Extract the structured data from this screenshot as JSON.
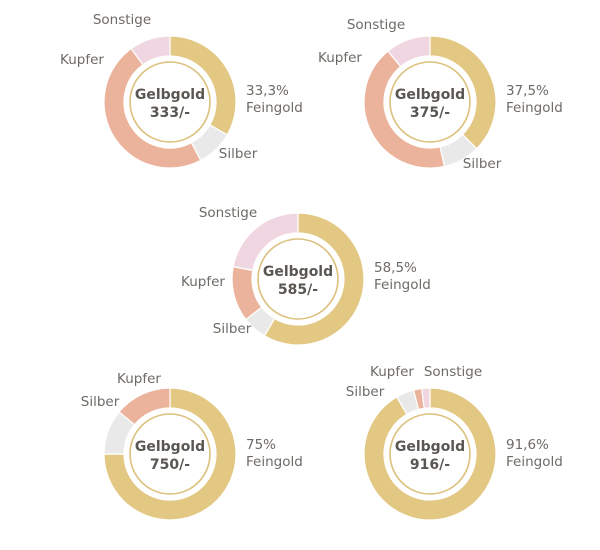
{
  "colors": {
    "gold": "#e3c884",
    "copper": "#ebb39c",
    "silver": "#e9e9e9",
    "other": "#f0d6e0",
    "inner_ring": "#dcc07c",
    "text": "#6e6a66",
    "center_text": "#5a5652"
  },
  "chart_data": [
    {
      "type": "pie",
      "title": "Gelbgold",
      "value_label": "333/-",
      "gold_label": [
        "33,3%",
        "Feingold"
      ],
      "slices": [
        {
          "name": "Feingold",
          "value": 33.3,
          "color_key": "gold"
        },
        {
          "name": "Silber",
          "value": 9,
          "color_key": "silver"
        },
        {
          "name": "Kupfer",
          "value": 47.7,
          "color_key": "copper"
        },
        {
          "name": "Sonstige",
          "value": 10,
          "color_key": "other"
        }
      ],
      "labels": {
        "silber": "Silber",
        "kupfer": "Kupfer",
        "sonstige": "Sonstige"
      }
    },
    {
      "type": "pie",
      "title": "Gelbgold",
      "value_label": "375/-",
      "gold_label": [
        "37,5%",
        "Feingold"
      ],
      "slices": [
        {
          "name": "Feingold",
          "value": 37.5,
          "color_key": "gold"
        },
        {
          "name": "Silber",
          "value": 9,
          "color_key": "silver"
        },
        {
          "name": "Kupfer",
          "value": 42.5,
          "color_key": "copper"
        },
        {
          "name": "Sonstige",
          "value": 11,
          "color_key": "other"
        }
      ],
      "labels": {
        "silber": "Silber",
        "kupfer": "Kupfer",
        "sonstige": "Sonstige"
      }
    },
    {
      "type": "pie",
      "title": "Gelbgold",
      "value_label": "585/-",
      "gold_label": [
        "58,5%",
        "Feingold"
      ],
      "slices": [
        {
          "name": "Feingold",
          "value": 58.5,
          "color_key": "gold"
        },
        {
          "name": "Silber",
          "value": 6,
          "color_key": "silver"
        },
        {
          "name": "Kupfer",
          "value": 13.5,
          "color_key": "copper"
        },
        {
          "name": "Sonstige",
          "value": 22,
          "color_key": "other"
        }
      ],
      "labels": {
        "silber": "Silber",
        "kupfer": "Kupfer",
        "sonstige": "Sonstige"
      }
    },
    {
      "type": "pie",
      "title": "Gelbgold",
      "value_label": "750/-",
      "gold_label": [
        "75%",
        "Feingold"
      ],
      "slices": [
        {
          "name": "Feingold",
          "value": 75,
          "color_key": "gold"
        },
        {
          "name": "Silber",
          "value": 11,
          "color_key": "silver"
        },
        {
          "name": "Kupfer",
          "value": 14,
          "color_key": "copper"
        }
      ],
      "labels": {
        "silber": "Silber",
        "kupfer": "Kupfer"
      }
    },
    {
      "type": "pie",
      "title": "Gelbgold",
      "value_label": "916/-",
      "gold_label": [
        "91,6%",
        "Feingold"
      ],
      "slices": [
        {
          "name": "Feingold",
          "value": 91.6,
          "color_key": "gold"
        },
        {
          "name": "Silber",
          "value": 4.4,
          "color_key": "silver"
        },
        {
          "name": "Kupfer",
          "value": 2,
          "color_key": "copper"
        },
        {
          "name": "Sonstige",
          "value": 2,
          "color_key": "other"
        }
      ],
      "labels": {
        "silber": "Silber",
        "kupfer": "Kupfer",
        "sonstige": "Sonstige"
      }
    }
  ]
}
